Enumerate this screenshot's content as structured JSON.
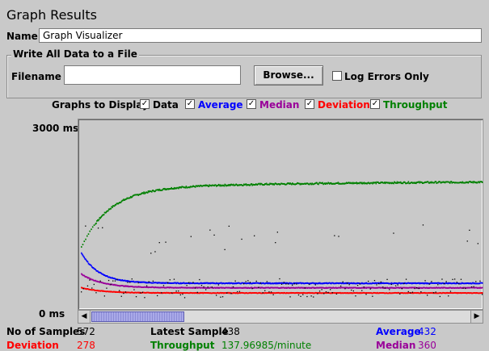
{
  "title": "Graph Results",
  "name": {
    "label": "Name:",
    "value": "Graph Visualizer"
  },
  "file_group": {
    "legend": "Write All Data to a File",
    "filename_label": "Filename",
    "filename_value": "",
    "browse_label": "Browse...",
    "log_errors_label": "Log Errors Only",
    "log_errors_checked": false
  },
  "graphs": {
    "label": "Graphs to Display",
    "options": [
      {
        "label": "Data",
        "checked": true,
        "color": "#000000"
      },
      {
        "label": "Average",
        "checked": true,
        "color": "#0000ff"
      },
      {
        "label": "Median",
        "checked": true,
        "color": "#990099"
      },
      {
        "label": "Deviation",
        "checked": true,
        "color": "#ff0000"
      },
      {
        "label": "Throughput",
        "checked": true,
        "color": "#008000"
      }
    ]
  },
  "chart": {
    "y_max_label": "3000  ms",
    "y_min_label": "0  ms"
  },
  "chart_data": {
    "type": "scatter",
    "ylim": [
      0,
      3000
    ],
    "ylabel": "ms",
    "n_samples": 572,
    "series": [
      {
        "name": "Throughput",
        "color": "#008000",
        "level": 2050
      },
      {
        "name": "Average",
        "color": "#0000ff",
        "level": 432
      },
      {
        "name": "Median",
        "color": "#990099",
        "level": 360
      },
      {
        "name": "Deviation",
        "color": "#ff0000",
        "level": 278
      },
      {
        "name": "Data",
        "color": "#000000",
        "level": 350
      }
    ]
  },
  "stats": {
    "no_samples_label": "No of Samples",
    "no_samples_value": "572",
    "latest_label": "Latest Sample",
    "latest_value": "438",
    "average_label": "Average",
    "average_value": "432",
    "deviation_label": "Deviation",
    "deviation_value": "278",
    "throughput_label": "Throughput",
    "throughput_value": "137.96985/minute",
    "median_label": "Median",
    "median_value": "360"
  },
  "colors": {
    "average": "#0000ff",
    "median": "#990099",
    "deviation": "#ff0000",
    "throughput": "#008000"
  }
}
